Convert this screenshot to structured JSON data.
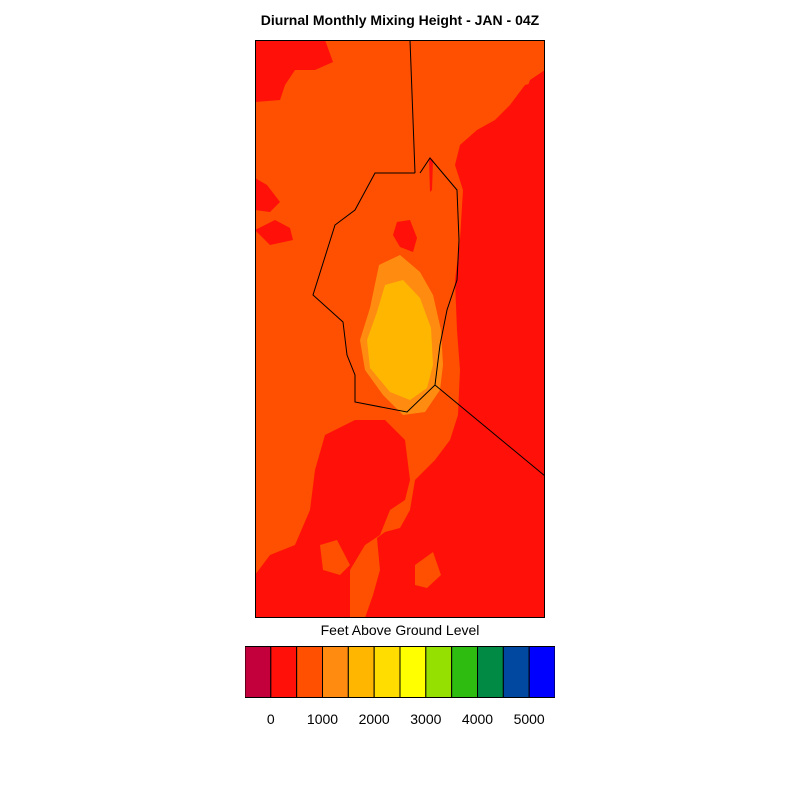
{
  "title": "Diurnal Monthly Mixing Height - JAN - 04Z",
  "legend": {
    "title": "Feet Above Ground Level",
    "ticks": [
      "0",
      "1000",
      "2000",
      "3000",
      "4000",
      "5000"
    ],
    "colors": [
      "#c4003c",
      "#ff1008",
      "#ff4f00",
      "#ff8c10",
      "#ffb600",
      "#ffdd00",
      "#ffff00",
      "#95e000",
      "#2fbc10",
      "#008a44",
      "#0048a0",
      "#0000ff"
    ]
  },
  "map": {
    "field_colors": {
      "lowest_visible": "#ff1008",
      "low": "#ff4f00",
      "mid": "#ff8c10",
      "high": "#ffb600"
    }
  }
}
